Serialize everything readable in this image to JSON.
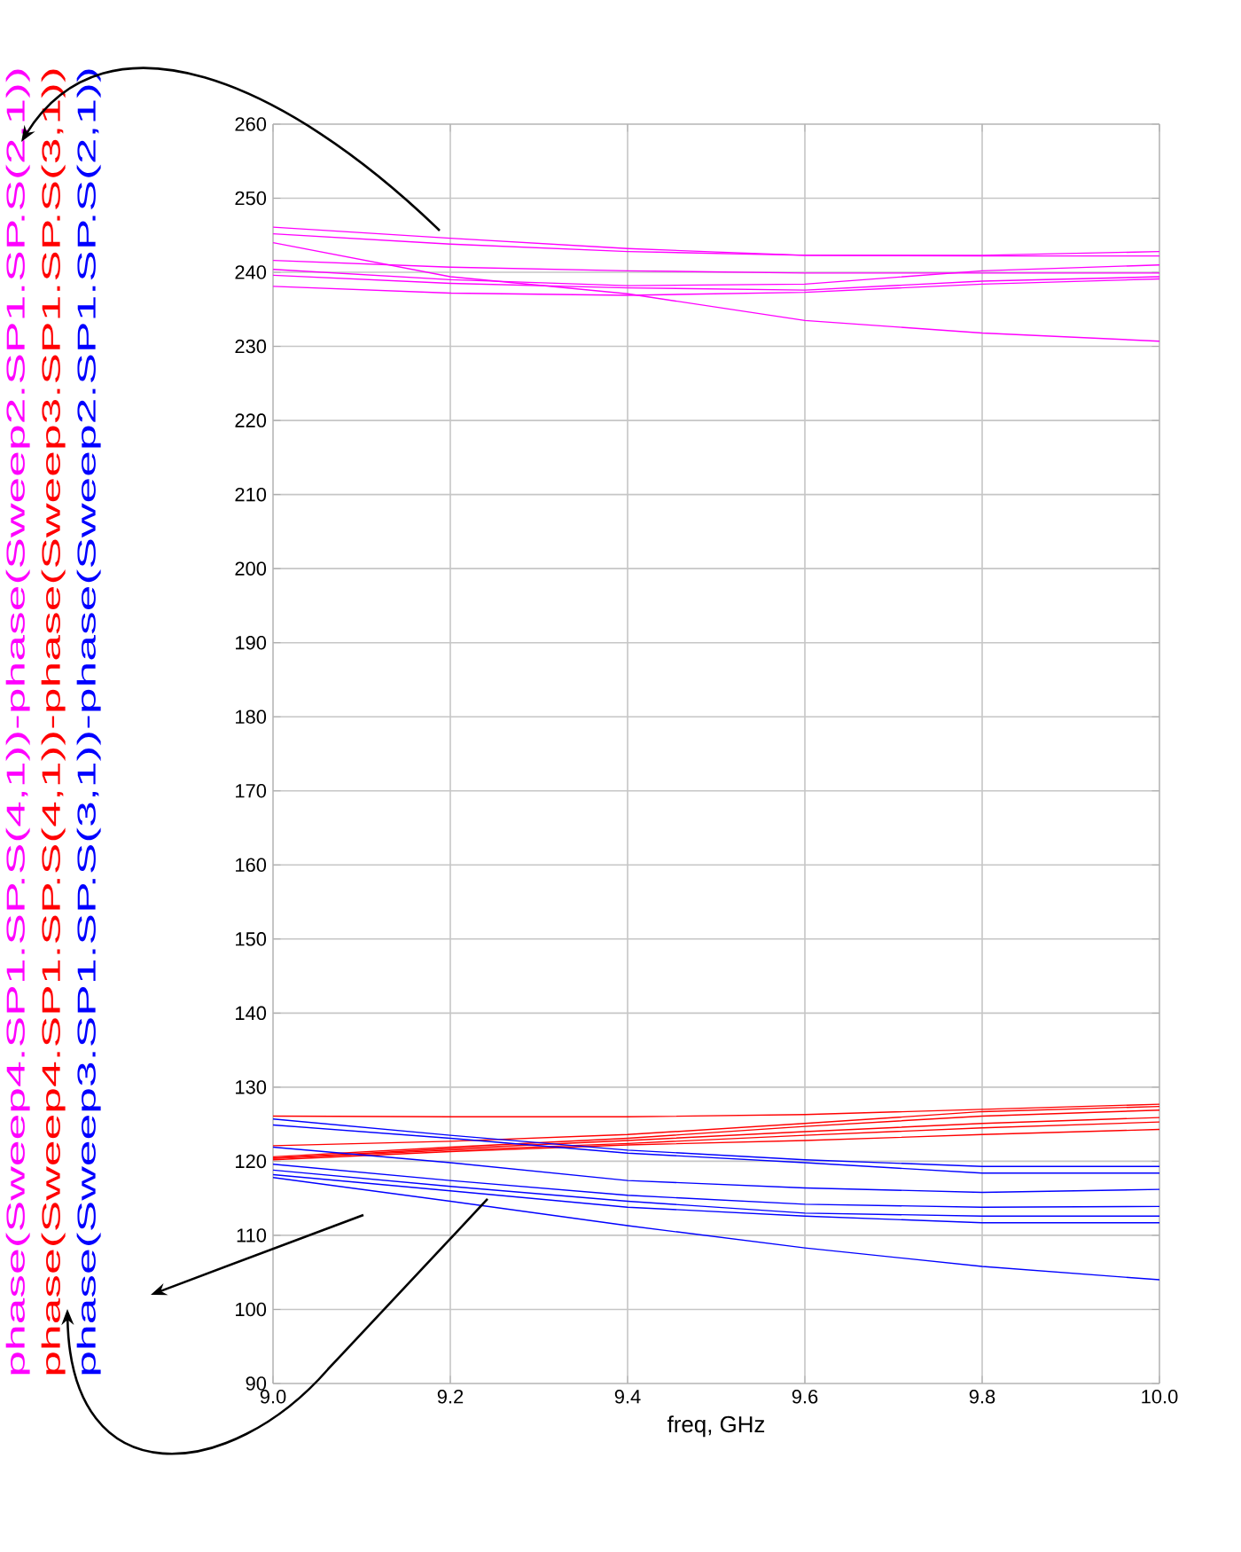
{
  "chart_data": {
    "type": "line",
    "xlabel": "freq, GHz",
    "x": [
      9.0,
      9.2,
      9.4,
      9.6,
      9.8,
      10.0
    ],
    "xlim": [
      9.0,
      10.0
    ],
    "xticks": [
      {
        "value": 9.0,
        "label": "9.0"
      },
      {
        "value": 9.2,
        "label": "9.2"
      },
      {
        "value": 9.4,
        "label": "9.4"
      },
      {
        "value": 9.6,
        "label": "9.6"
      },
      {
        "value": 9.8,
        "label": "9.8"
      },
      {
        "value": 10.0,
        "label": "10.0"
      }
    ],
    "ylim": [
      90,
      260
    ],
    "yticks": [
      90,
      100,
      110,
      120,
      130,
      140,
      150,
      160,
      170,
      180,
      190,
      200,
      210,
      220,
      230,
      240,
      250,
      260
    ],
    "grid": true,
    "series": [
      {
        "name": "phase(Sweep4.SP1.SP.S(4,1))-phase(Sweep2.SP1.SP.S(2,1))",
        "color": "#ff00ff",
        "values": [
          246.1,
          244.6,
          243.2,
          242.3,
          242.3,
          242.8
        ]
      },
      {
        "color": "#ff00ff",
        "values": [
          245.2,
          243.8,
          242.8,
          242.3,
          242.2,
          242.2
        ]
      },
      {
        "color": "#ff00ff",
        "values": [
          244.0,
          239.4,
          237.1,
          233.5,
          231.8,
          230.7
        ]
      },
      {
        "color": "#ff00ff",
        "values": [
          241.6,
          240.7,
          240.2,
          239.9,
          239.9,
          239.9
        ]
      },
      {
        "color": "#ff00ff",
        "values": [
          240.4,
          239.0,
          238.2,
          238.4,
          240.2,
          241.0
        ]
      },
      {
        "color": "#ff00ff",
        "values": [
          239.6,
          238.5,
          237.9,
          237.6,
          238.8,
          239.4
        ]
      },
      {
        "color": "#ff00ff",
        "values": [
          238.1,
          237.2,
          236.9,
          237.3,
          238.4,
          239.1
        ]
      },
      {
        "name": "phase(Sweep4.SP1.SP.S(4,1))-phase(Sweep3.SP1.SP.S(3,1))",
        "color": "#ff0000",
        "values": [
          126.1,
          126.0,
          126.0,
          126.3,
          127.0,
          127.7
        ]
      },
      {
        "color": "#ff0000",
        "values": [
          122.1,
          122.7,
          123.6,
          125.1,
          126.7,
          127.4
        ]
      },
      {
        "color": "#ff0000",
        "values": [
          120.6,
          121.9,
          123.1,
          124.7,
          126.1,
          126.9
        ]
      },
      {
        "color": "#ff0000",
        "values": [
          120.4,
          121.7,
          122.8,
          124.0,
          125.1,
          125.9
        ]
      },
      {
        "color": "#ff0000",
        "values": [
          120.4,
          121.5,
          122.4,
          123.5,
          124.5,
          125.3
        ]
      },
      {
        "color": "#ff0000",
        "values": [
          120.2,
          121.3,
          122.2,
          122.8,
          123.6,
          124.3
        ]
      },
      {
        "name": "phase(Sweep3.SP1.SP.S(3,1))-phase(Sweep2.SP1.SP.S(2,1))",
        "color": "#0000ff",
        "values": [
          125.7,
          123.5,
          121.5,
          120.2,
          119.3,
          119.3
        ]
      },
      {
        "color": "#0000ff",
        "values": [
          124.9,
          123.1,
          121.1,
          119.8,
          118.4,
          118.4
        ]
      },
      {
        "color": "#0000ff",
        "values": [
          121.9,
          119.8,
          117.4,
          116.4,
          115.8,
          116.2
        ]
      },
      {
        "color": "#0000ff",
        "values": [
          119.6,
          117.4,
          115.4,
          114.2,
          113.8,
          113.9
        ]
      },
      {
        "color": "#0000ff",
        "values": [
          118.8,
          116.6,
          114.6,
          113.0,
          112.6,
          112.6
        ]
      },
      {
        "color": "#0000ff",
        "values": [
          118.2,
          116.0,
          113.8,
          112.6,
          111.7,
          111.7
        ]
      },
      {
        "color": "#0000ff",
        "values": [
          117.8,
          114.6,
          111.3,
          108.3,
          105.8,
          104.0
        ]
      }
    ]
  }
}
